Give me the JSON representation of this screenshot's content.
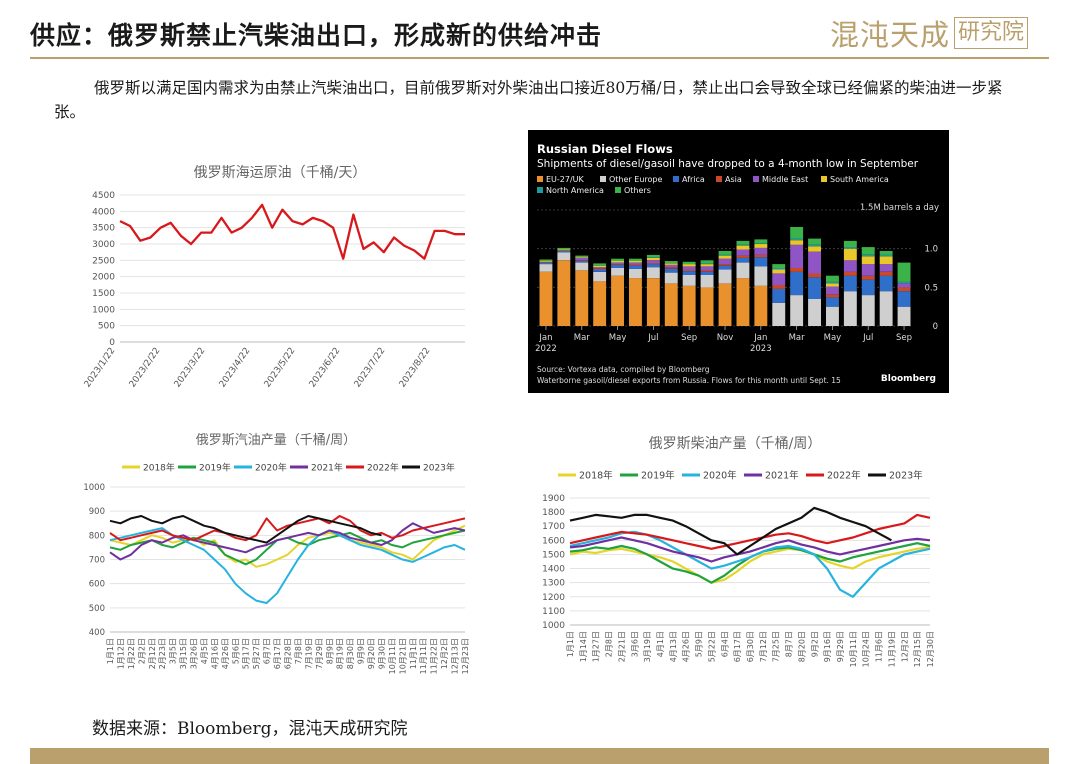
{
  "header": {
    "title": "供应：俄罗斯禁止汽柴油出口，形成新的供给冲击",
    "logo_script": "混沌天成",
    "logo_box": "研究院"
  },
  "paragraph": "俄罗斯以满足国内需求为由禁止汽柴油出口，目前俄罗斯对外柴油出口接近80万桶/日，禁止出口会导致全球已经偏紧的柴油进一步紧张。",
  "source": "数据来源：Bloomberg，混沌天成研究院",
  "colors": {
    "gold": "#b9a06c",
    "red": "#d7191c",
    "y2018": "#e6d42a",
    "y2019": "#1fa33c",
    "y2020": "#26b3e0",
    "y2021": "#7030a0",
    "y2022": "#d7191c",
    "y2023": "#111111"
  },
  "chart_data": [
    {
      "id": "seaborne",
      "type": "line",
      "title": "俄罗斯海运原油（千桶/天）",
      "ylim": [
        0,
        4500
      ],
      "yticks": [
        "0",
        "500",
        "1000",
        "1500",
        "2000",
        "2500",
        "3000",
        "3500",
        "4000",
        "4500"
      ],
      "xticks": [
        "2023/1/22",
        "2023/2/22",
        "2023/3/22",
        "2023/4/22",
        "2023/5/22",
        "2023/6/22",
        "2023/7/22",
        "2023/8/22"
      ],
      "series": [
        {
          "values": [
            3700,
            3550,
            3100,
            3200,
            3500,
            3650,
            3250,
            3000,
            3350,
            3350,
            3800,
            3350,
            3500,
            3800,
            4200,
            3500,
            4050,
            3700,
            3600,
            3800,
            3700,
            3500,
            2550,
            3900,
            2850,
            3050,
            2750,
            3200,
            2950,
            2800,
            2550,
            3400,
            3400,
            3300,
            3300
          ]
        }
      ]
    },
    {
      "id": "bloomberg",
      "type": "bar",
      "title": "Russian Diesel Flows",
      "subtitle": "Shipments of diesel/gasoil have dropped to a 4-month low in September",
      "unit_label": "1.5M barrels a day",
      "ylim": [
        0,
        1.5
      ],
      "yticks": [
        "0",
        "0.5",
        "1.0"
      ],
      "xticks": [
        "Jan",
        "Mar",
        "May",
        "Jul",
        "Sep",
        "Nov",
        "Jan",
        "Mar",
        "May",
        "Jul",
        "Sep"
      ],
      "year_labels": [
        "2022",
        "2023"
      ],
      "legend": [
        {
          "name": "EU-27/UK",
          "color": "#e8912d"
        },
        {
          "name": "Other Europe",
          "color": "#cfcfcf"
        },
        {
          "name": "Africa",
          "color": "#2f6fc9"
        },
        {
          "name": "Asia",
          "color": "#c8492b"
        },
        {
          "name": "Middle East",
          "color": "#8f55c4"
        },
        {
          "name": "South America",
          "color": "#e9c62a"
        },
        {
          "name": "North America",
          "color": "#1c9c9c"
        },
        {
          "name": "Others",
          "color": "#3bb24a"
        }
      ],
      "stacks": [
        [
          0.7,
          0.1,
          0.02,
          0.01,
          0.0,
          0.01,
          0.0,
          0.02
        ],
        [
          0.85,
          0.1,
          0.02,
          0.01,
          0.0,
          0.01,
          0.0,
          0.02
        ],
        [
          0.72,
          0.1,
          0.02,
          0.01,
          0.03,
          0.01,
          0.0,
          0.02
        ],
        [
          0.58,
          0.12,
          0.03,
          0.01,
          0.02,
          0.02,
          0.0,
          0.03
        ],
        [
          0.65,
          0.1,
          0.04,
          0.01,
          0.02,
          0.02,
          0.0,
          0.03
        ],
        [
          0.62,
          0.12,
          0.04,
          0.01,
          0.03,
          0.02,
          0.0,
          0.03
        ],
        [
          0.62,
          0.14,
          0.04,
          0.01,
          0.04,
          0.03,
          0.01,
          0.03
        ],
        [
          0.55,
          0.14,
          0.05,
          0.02,
          0.03,
          0.02,
          0.0,
          0.03
        ],
        [
          0.52,
          0.14,
          0.05,
          0.02,
          0.04,
          0.03,
          0.0,
          0.03
        ],
        [
          0.5,
          0.16,
          0.04,
          0.02,
          0.05,
          0.03,
          0.01,
          0.04
        ],
        [
          0.55,
          0.18,
          0.05,
          0.02,
          0.07,
          0.04,
          0.01,
          0.05
        ],
        [
          0.62,
          0.2,
          0.06,
          0.03,
          0.08,
          0.05,
          0.01,
          0.05
        ],
        [
          0.52,
          0.25,
          0.12,
          0.03,
          0.09,
          0.05,
          0.01,
          0.05
        ],
        [
          0.0,
          0.3,
          0.18,
          0.05,
          0.15,
          0.05,
          0.02,
          0.05
        ],
        [
          0.0,
          0.4,
          0.3,
          0.05,
          0.3,
          0.06,
          0.02,
          0.15
        ],
        [
          0.0,
          0.35,
          0.28,
          0.05,
          0.28,
          0.07,
          0.02,
          0.08
        ],
        [
          0.0,
          0.25,
          0.12,
          0.04,
          0.1,
          0.04,
          0.02,
          0.08
        ],
        [
          0.0,
          0.45,
          0.2,
          0.05,
          0.15,
          0.15,
          0.02,
          0.08
        ],
        [
          0.0,
          0.4,
          0.2,
          0.05,
          0.15,
          0.1,
          0.02,
          0.1
        ],
        [
          0.0,
          0.45,
          0.2,
          0.05,
          0.1,
          0.1,
          0.02,
          0.05
        ],
        [
          0.0,
          0.25,
          0.2,
          0.05,
          0.05,
          0.0,
          0.02,
          0.25
        ]
      ],
      "source_note": "Source: Vortexa data, compiled by Bloomberg",
      "footnote": "Waterborne gasoil/diesel exports from Russia. Flows for this month until Sept. 15",
      "brand": "Bloomberg"
    },
    {
      "id": "gasoline",
      "type": "line",
      "title": "俄罗斯汽油产量（千桶/周）",
      "ylim": [
        400,
        1000
      ],
      "yticks": [
        "400",
        "500",
        "600",
        "700",
        "800",
        "900",
        "1000"
      ],
      "xticks": [
        "1月1日",
        "1月12日",
        "1月22日",
        "2月2日",
        "2月12日",
        "2月23日",
        "3月5日",
        "3月15日",
        "3月26日",
        "4月5日",
        "4月16日",
        "4月26日",
        "5月6日",
        "5月17日",
        "5月27日",
        "6月7日",
        "6月17日",
        "6月28日",
        "7月8日",
        "7月19日",
        "7月29日",
        "8月9日",
        "8月19日",
        "8月30日",
        "9月9日",
        "9月20日",
        "9月30日",
        "10月11日",
        "10月21日",
        "11月1日",
        "11月11日",
        "11月22日",
        "12月2日",
        "12月13日",
        "12月23日"
      ],
      "series": [
        {
          "name": "2018年",
          "values": [
            780,
            770,
            760,
            780,
            800,
            790,
            770,
            780,
            790,
            760,
            780,
            720,
            690,
            700,
            670,
            680,
            700,
            720,
            760,
            790,
            800,
            810,
            800,
            780,
            770,
            760,
            750,
            730,
            720,
            700,
            740,
            780,
            800,
            820,
            840
          ]
        },
        {
          "name": "2019年",
          "values": [
            750,
            740,
            760,
            770,
            780,
            760,
            750,
            770,
            790,
            780,
            770,
            720,
            700,
            680,
            700,
            740,
            780,
            790,
            770,
            760,
            780,
            790,
            800,
            810,
            790,
            770,
            780,
            760,
            750,
            770,
            780,
            790,
            800,
            810,
            820
          ]
        },
        {
          "name": "2020年",
          "values": [
            780,
            790,
            800,
            810,
            820,
            830,
            800,
            780,
            760,
            740,
            700,
            660,
            600,
            560,
            530,
            520,
            560,
            630,
            700,
            760,
            800,
            820,
            800,
            780,
            760,
            750,
            740,
            720,
            700,
            690,
            710,
            730,
            750,
            760,
            740
          ]
        },
        {
          "name": "2021年",
          "values": [
            730,
            700,
            720,
            760,
            780,
            770,
            790,
            800,
            780,
            770,
            760,
            750,
            740,
            730,
            750,
            760,
            780,
            790,
            800,
            810,
            800,
            820,
            810,
            790,
            780,
            770,
            760,
            780,
            820,
            850,
            830,
            810,
            820,
            830,
            820
          ]
        },
        {
          "name": "2022年",
          "values": [
            810,
            780,
            790,
            800,
            810,
            820,
            800,
            790,
            780,
            800,
            820,
            810,
            790,
            780,
            800,
            870,
            820,
            840,
            850,
            860,
            870,
            850,
            880,
            860,
            820,
            800,
            810,
            790,
            800,
            820,
            830,
            840,
            850,
            860,
            870
          ]
        },
        {
          "name": "2023年",
          "values": [
            860,
            850,
            870,
            880,
            860,
            850,
            870,
            880,
            860,
            840,
            830,
            810,
            800,
            790,
            780,
            770,
            800,
            830,
            860,
            880,
            870,
            860,
            850,
            840,
            830,
            810,
            800
          ]
        }
      ]
    },
    {
      "id": "diesel",
      "type": "line",
      "title": "俄罗斯柴油产量（千桶/周）",
      "ylim": [
        1000,
        1900
      ],
      "yticks": [
        "1000",
        "1100",
        "1200",
        "1300",
        "1400",
        "1500",
        "1600",
        "1700",
        "1800",
        "1900"
      ],
      "xticks": [
        "1月1日",
        "1月14日",
        "1月27日",
        "2月8日",
        "2月21日",
        "3月6日",
        "3月19日",
        "4月1日",
        "4月13日",
        "4月26日",
        "5月9日",
        "5月22日",
        "6月4日",
        "6月17日",
        "6月30日",
        "7月12日",
        "7月25日",
        "8月7日",
        "8月20日",
        "9月2日",
        "9月16日",
        "9月29日",
        "10月11日",
        "10月24日",
        "11月6日",
        "11月19日",
        "12月2日",
        "12月15日",
        "12月30日"
      ],
      "series": [
        {
          "name": "2018年",
          "values": [
            1500,
            1520,
            1510,
            1530,
            1540,
            1520,
            1500,
            1480,
            1450,
            1400,
            1350,
            1300,
            1320,
            1380,
            1450,
            1500,
            1520,
            1540,
            1530,
            1500,
            1450,
            1420,
            1400,
            1450,
            1480,
            1500,
            1520,
            1540,
            1550
          ]
        },
        {
          "name": "2019年",
          "values": [
            1520,
            1530,
            1550,
            1540,
            1560,
            1540,
            1500,
            1450,
            1400,
            1380,
            1350,
            1300,
            1350,
            1420,
            1480,
            1520,
            1540,
            1550,
            1530,
            1500,
            1470,
            1450,
            1480,
            1500,
            1520,
            1540,
            1560,
            1580,
            1560
          ]
        },
        {
          "name": "2020年",
          "values": [
            1560,
            1580,
            1600,
            1620,
            1650,
            1660,
            1640,
            1600,
            1550,
            1500,
            1450,
            1400,
            1420,
            1450,
            1480,
            1520,
            1550,
            1560,
            1540,
            1500,
            1400,
            1250,
            1200,
            1300,
            1400,
            1450,
            1500,
            1520,
            1540
          ]
        },
        {
          "name": "2021年",
          "values": [
            1550,
            1560,
            1580,
            1600,
            1620,
            1600,
            1580,
            1550,
            1520,
            1500,
            1480,
            1450,
            1480,
            1500,
            1520,
            1550,
            1580,
            1600,
            1570,
            1550,
            1520,
            1500,
            1520,
            1540,
            1560,
            1580,
            1600,
            1610,
            1600
          ]
        },
        {
          "name": "2022年",
          "values": [
            1580,
            1600,
            1620,
            1640,
            1660,
            1650,
            1640,
            1620,
            1600,
            1580,
            1560,
            1540,
            1560,
            1580,
            1600,
            1620,
            1640,
            1650,
            1630,
            1600,
            1580,
            1600,
            1620,
            1650,
            1680,
            1700,
            1720,
            1780,
            1760
          ]
        },
        {
          "name": "2023年",
          "values": [
            1740,
            1760,
            1780,
            1770,
            1760,
            1780,
            1780,
            1760,
            1740,
            1700,
            1650,
            1600,
            1580,
            1500,
            1560,
            1620,
            1680,
            1720,
            1760,
            1830,
            1800,
            1760,
            1730,
            1700,
            1650,
            1600
          ]
        }
      ]
    }
  ]
}
